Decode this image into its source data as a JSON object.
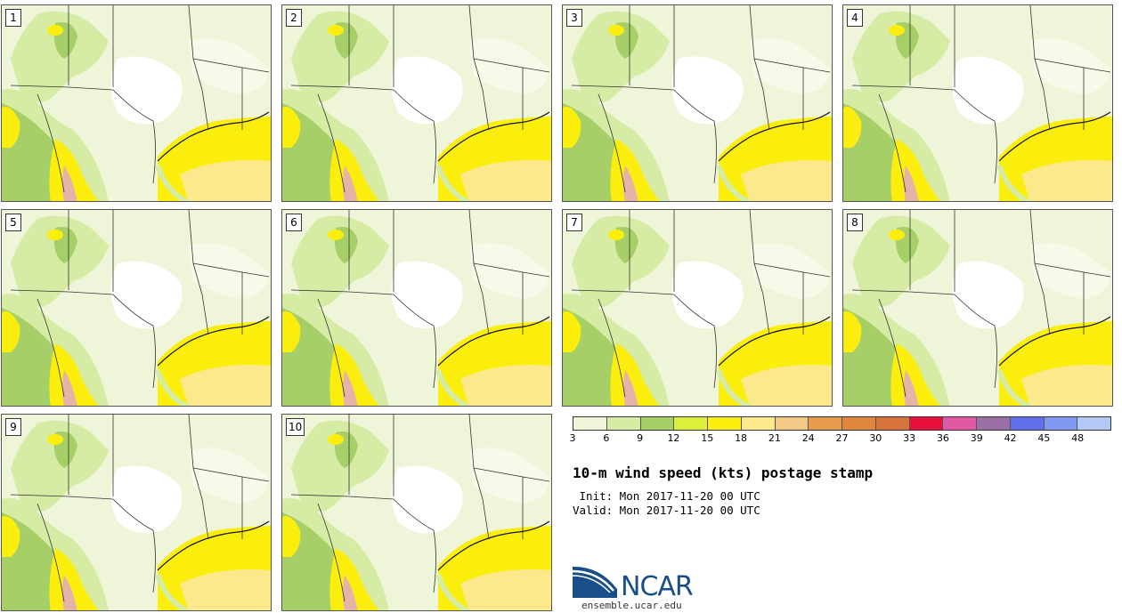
{
  "panels": [
    {
      "label": "1"
    },
    {
      "label": "2"
    },
    {
      "label": "3"
    },
    {
      "label": "4"
    },
    {
      "label": "5"
    },
    {
      "label": "6"
    },
    {
      "label": "7"
    },
    {
      "label": "8"
    },
    {
      "label": "9"
    },
    {
      "label": "10"
    }
  ],
  "colorbar": {
    "colors": [
      "#eef5d9",
      "#d6eba4",
      "#a7cf67",
      "#dcef3a",
      "#fbee0c",
      "#fbe98c",
      "#f4c985",
      "#e79b4d",
      "#e0873e",
      "#d8733b",
      "#e8103a",
      "#e05aa3",
      "#9a70a6",
      "#6470ea",
      "#7f9af0",
      "#b4c8f5"
    ],
    "ticks": [
      "3",
      "6",
      "9",
      "12",
      "15",
      "18",
      "21",
      "24",
      "27",
      "30",
      "33",
      "36",
      "39",
      "42",
      "45",
      "48"
    ]
  },
  "title": "10-m wind speed (kts) postage stamp",
  "init_text": " Init: Mon 2017-11-20 00 UTC",
  "valid_text": "Valid: Mon 2017-11-20 00 UTC",
  "logo": {
    "name": "NCAR",
    "website": "ensemble.ucar.edu"
  },
  "palette": {
    "background_light": "#eef5d9",
    "calm": "#ffffff",
    "light_green": "#d6eba4",
    "mid_green": "#a7cf67",
    "yellow": "#fbee0c",
    "light_yellow": "#fbe98c",
    "orange": "#f4c985",
    "pink": "#e6b3a8",
    "border_line": "#333333",
    "logo_blue": "#1a4e8a"
  }
}
